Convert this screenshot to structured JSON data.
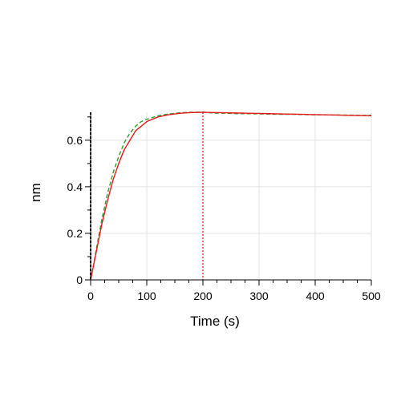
{
  "chart_data": {
    "type": "line",
    "xlabel": "Time (s)",
    "ylabel": "nm",
    "xlim": [
      0,
      500
    ],
    "ylim": [
      0,
      0.72
    ],
    "xticks": [
      0,
      100,
      200,
      300,
      400,
      500
    ],
    "yticks": [
      0,
      0.2,
      0.4,
      0.6
    ],
    "grid": true,
    "vertical_markers": [
      {
        "x": 0,
        "color": "#000000",
        "style": "dashed"
      },
      {
        "x": 200,
        "color": "#e41a1c",
        "style": "dotted"
      }
    ],
    "series": [
      {
        "color": "#2ca02c",
        "style": "dashed",
        "x": [
          0,
          5,
          10,
          20,
          30,
          40,
          50,
          60,
          70,
          80,
          90,
          100,
          120,
          140,
          160,
          180,
          200,
          220,
          240,
          260,
          280,
          300,
          320,
          340,
          360,
          380,
          400,
          420,
          440,
          460,
          480,
          500
        ],
        "y": [
          0,
          0.06,
          0.13,
          0.26,
          0.37,
          0.46,
          0.53,
          0.59,
          0.63,
          0.66,
          0.68,
          0.69,
          0.705,
          0.713,
          0.718,
          0.72,
          0.721,
          0.716,
          0.716,
          0.714,
          0.714,
          0.713,
          0.712,
          0.711,
          0.711,
          0.71,
          0.709,
          0.709,
          0.708,
          0.708,
          0.707,
          0.707
        ]
      },
      {
        "color": "#e41a1c",
        "style": "solid",
        "x": [
          0,
          5,
          10,
          20,
          30,
          40,
          50,
          60,
          70,
          80,
          90,
          100,
          120,
          140,
          160,
          180,
          200,
          220,
          240,
          260,
          280,
          300,
          320,
          340,
          360,
          380,
          400,
          420,
          440,
          460,
          480,
          500
        ],
        "y": [
          0,
          0.06,
          0.12,
          0.24,
          0.34,
          0.43,
          0.5,
          0.56,
          0.6,
          0.64,
          0.66,
          0.68,
          0.7,
          0.71,
          0.716,
          0.719,
          0.72,
          0.719,
          0.718,
          0.717,
          0.716,
          0.715,
          0.714,
          0.713,
          0.712,
          0.711,
          0.71,
          0.709,
          0.708,
          0.707,
          0.706,
          0.705
        ]
      }
    ]
  }
}
